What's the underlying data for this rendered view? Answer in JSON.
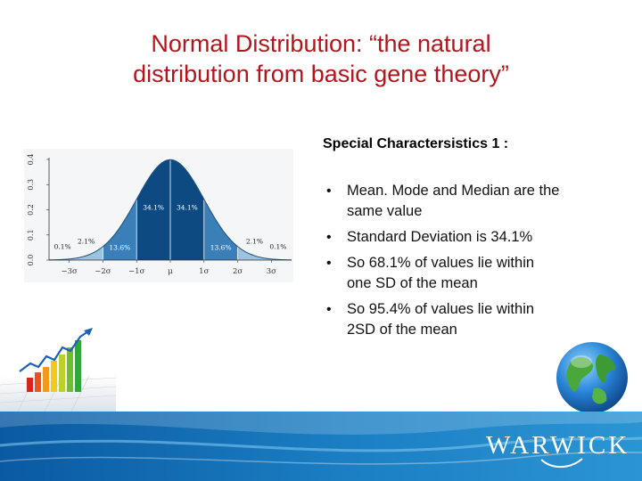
{
  "slide": {
    "title_line1": "Normal Distribution: “the natural",
    "title_line2": "distribution from basic gene theory”",
    "subtitle": "Special Charactersistics 1 :",
    "bullets": [
      {
        "line1": "Mean. Mode and Median are the",
        "line2": "same value"
      },
      {
        "line1": "Standard Deviation is 34.1%",
        "line2": ""
      },
      {
        "line1": "So  68.1% of values lie within",
        "line2": "one SD of the mean"
      },
      {
        "line1": "So 95.4% of values lie within",
        "line2": "2SD of the mean"
      }
    ],
    "logo_text": "WARWICK"
  },
  "chart_data": {
    "type": "area",
    "y_tick_labels": [
      "0.0",
      "0.1",
      "0.2",
      "0.3",
      "0.4"
    ],
    "x_tick_labels": [
      "−3σ",
      "−2σ",
      "−1σ",
      "μ",
      "1σ",
      "2σ",
      "3σ"
    ],
    "x_range": [
      -3.6,
      3.6
    ],
    "ylim": [
      0,
      0.4
    ],
    "curve": "normal density",
    "regions": [
      {
        "from": -3.6,
        "to": -3,
        "percent_label": "0.1%",
        "color": "#9bc2e0"
      },
      {
        "from": -3,
        "to": -2,
        "percent_label": "2.1%",
        "color": "#9bc2e0"
      },
      {
        "from": -2,
        "to": -1,
        "percent_label": "13.6%",
        "color": "#3a7fb8"
      },
      {
        "from": -1,
        "to": 0,
        "percent_label": "34.1%",
        "color": "#0d4a82"
      },
      {
        "from": 0,
        "to": 1,
        "percent_label": "34.1%",
        "color": "#0d4a82"
      },
      {
        "from": 1,
        "to": 2,
        "percent_label": "13.6%",
        "color": "#3a7fb8"
      },
      {
        "from": 2,
        "to": 3,
        "percent_label": "2.1%",
        "color": "#9bc2e0"
      },
      {
        "from": 3,
        "to": 3.6,
        "percent_label": "0.1%",
        "color": "#9bc2e0"
      }
    ]
  },
  "colors": {
    "title": "#b0161c",
    "footer_dark": "#0a5aa0",
    "footer_light": "#2b95d3"
  },
  "icons": [
    "growth-chart-icon",
    "globe-icon",
    "warwick-logo"
  ]
}
